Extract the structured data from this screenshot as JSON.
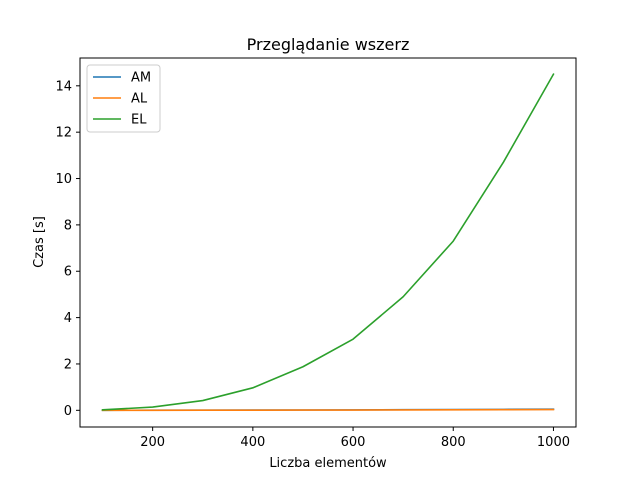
{
  "chart_data": {
    "type": "line",
    "title": "Przeglądanie wszerz",
    "xlabel": "Liczba elementów",
    "ylabel": "Czas [s]",
    "xlim": [
      55,
      1045
    ],
    "ylim": [
      -0.72,
      15.2
    ],
    "xticks": [
      200,
      400,
      600,
      800,
      1000
    ],
    "yticks": [
      0,
      2,
      4,
      6,
      8,
      10,
      12,
      14
    ],
    "grid": false,
    "legend_position": "top-left",
    "x": [
      100,
      200,
      300,
      400,
      500,
      600,
      700,
      800,
      900,
      1000
    ],
    "series": [
      {
        "name": "AM",
        "color": "#1f77b4",
        "values": [
          0.002,
          0.004,
          0.007,
          0.01,
          0.014,
          0.019,
          0.025,
          0.032,
          0.04,
          0.05
        ]
      },
      {
        "name": "AL",
        "color": "#ff7f0e",
        "values": [
          0.001,
          0.002,
          0.004,
          0.006,
          0.009,
          0.012,
          0.016,
          0.02,
          0.025,
          0.031
        ]
      },
      {
        "name": "EL",
        "color": "#2ca02c",
        "values": [
          0.02,
          0.14,
          0.42,
          0.97,
          1.88,
          3.07,
          4.9,
          7.3,
          10.7,
          14.5
        ]
      }
    ]
  }
}
